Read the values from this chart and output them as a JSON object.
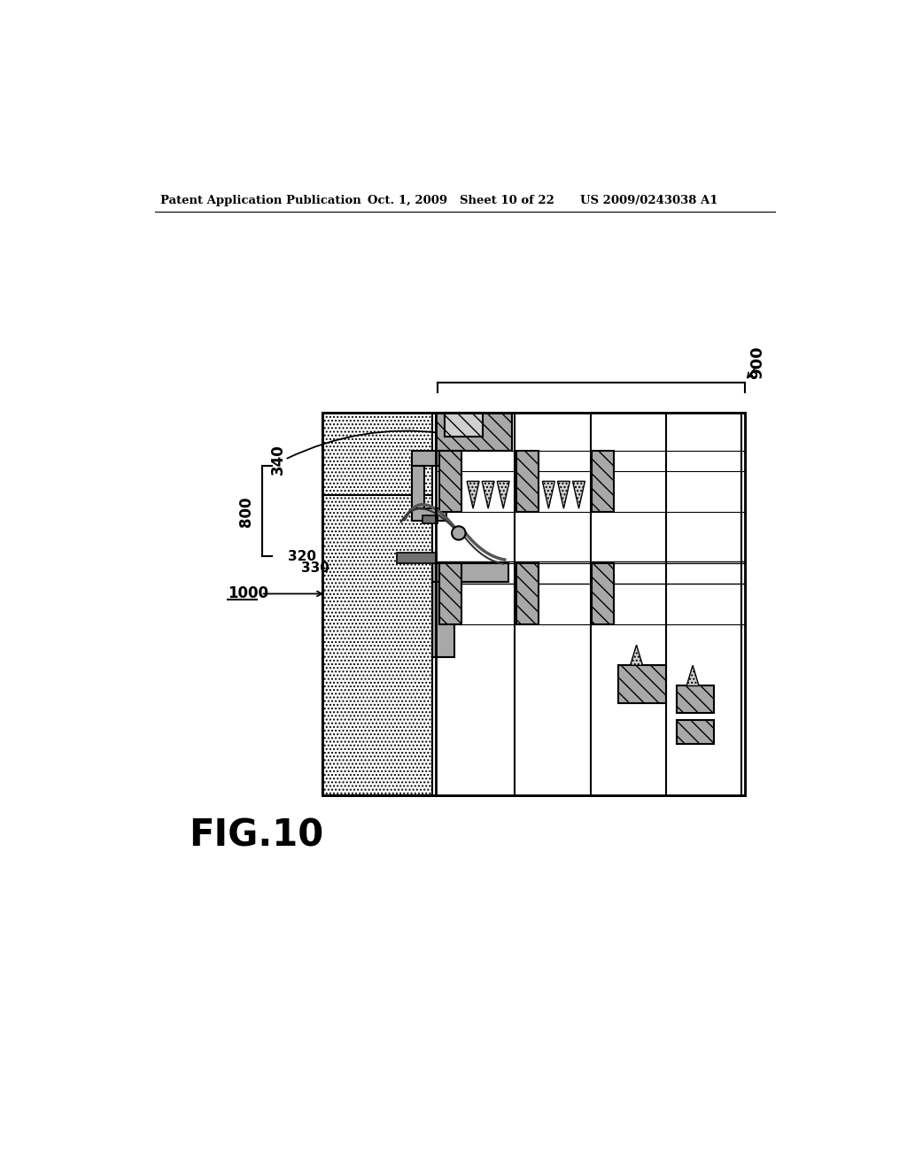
{
  "title": "FIG.10",
  "header_left": "Patent Application Publication",
  "header_mid": "Oct. 1, 2009   Sheet 10 of 22",
  "header_right": "US 2009/0243038 A1",
  "label_900": "900",
  "label_340": "340",
  "label_800": "800",
  "label_1000": "1000",
  "label_320": "320",
  "label_330": "330",
  "bg_color": "#ffffff",
  "line_color": "#000000",
  "gray_light": "#d0d0d0",
  "gray_medium": "#a8a8a8",
  "gray_dark": "#707070",
  "gray_hatch": "#b8b8b8"
}
